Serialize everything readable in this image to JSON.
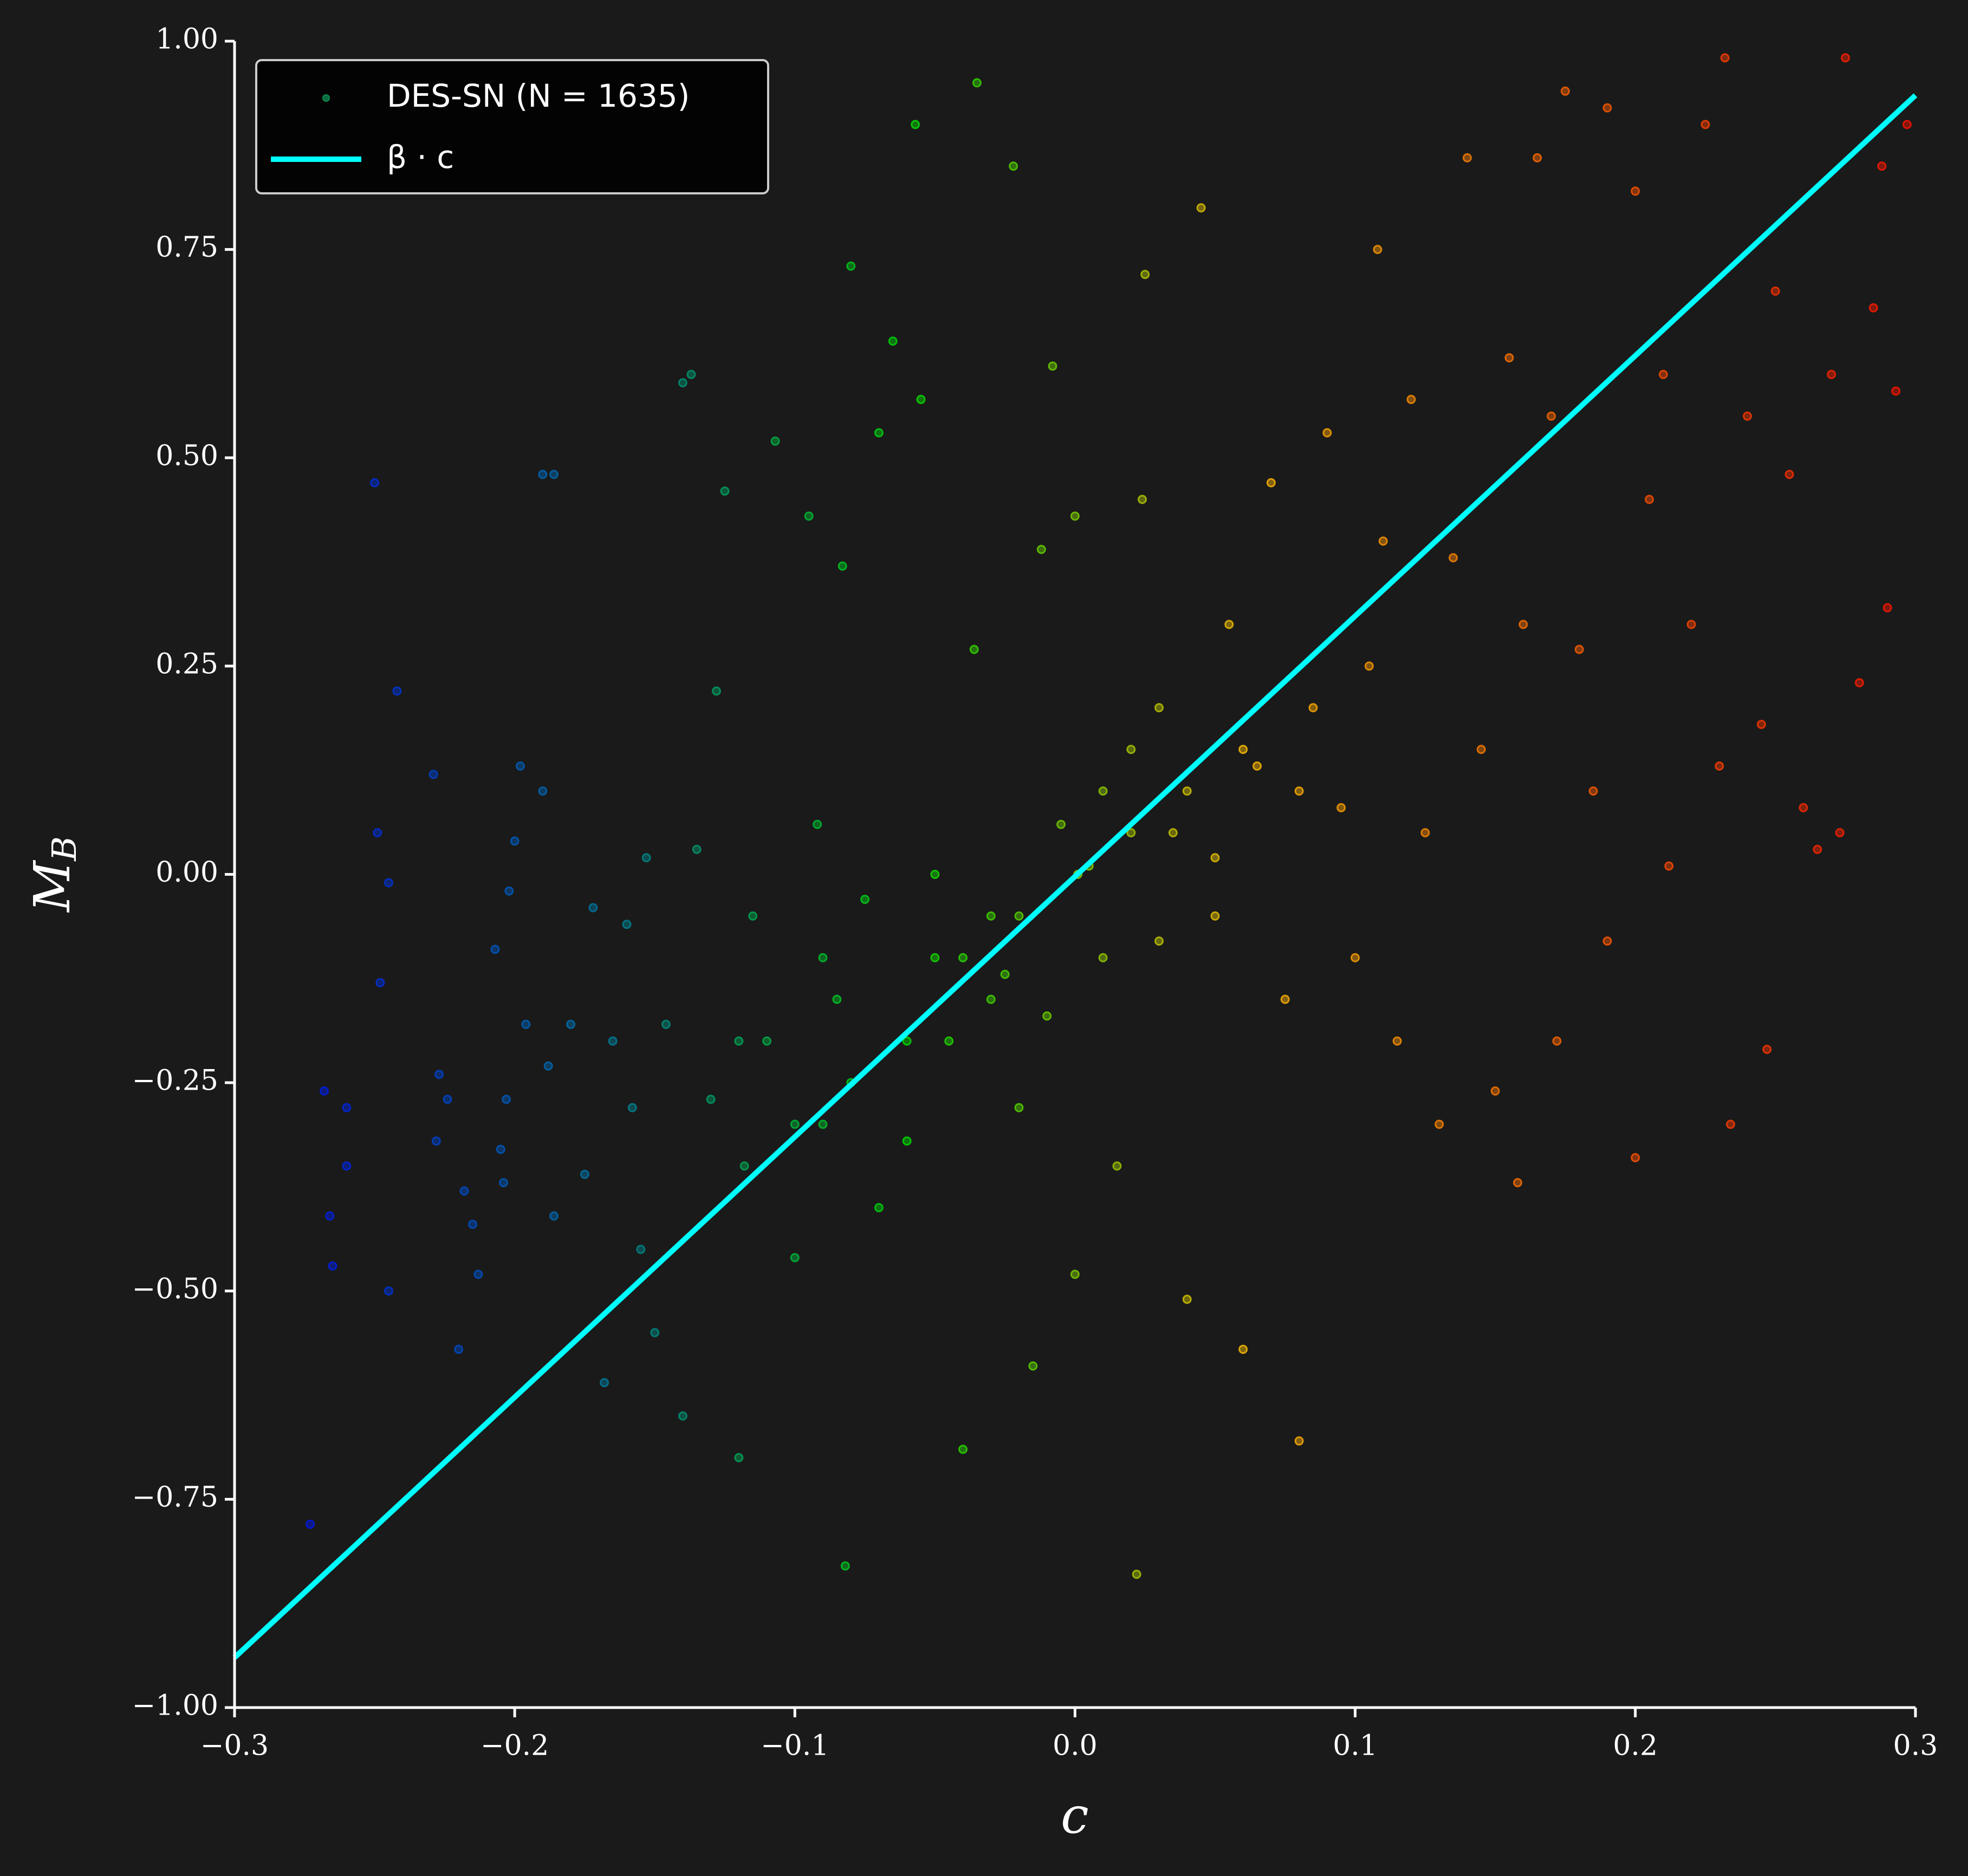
{
  "chart_data": {
    "type": "scatter",
    "xlabel": "c",
    "ylabel": "M",
    "ylabel_subscript": "B",
    "xlim": [
      -0.3,
      0.3
    ],
    "xticks": [
      {
        "value": -0.3,
        "label": "−0.3"
      },
      {
        "value": -0.2,
        "label": "−0.2"
      },
      {
        "value": -0.1,
        "label": "−0.1"
      },
      {
        "value": 0,
        "label": "0.0"
      },
      0.1,
      0.2,
      0.3
    ],
    "ylim": [
      -1,
      1
    ],
    "yticks": [
      {
        "value": -1,
        "label": "−1.00"
      },
      {
        "value": -0.75,
        "label": "−0.75"
      },
      {
        "value": -0.5,
        "label": "−0.50"
      },
      {
        "value": -0.25,
        "label": "−0.25"
      },
      {
        "value": 0,
        "label": "0.00"
      },
      0.25,
      {
        "value": 0.5,
        "label": "0.50"
      },
      0.75,
      {
        "value": 1,
        "label": "1.00"
      }
    ],
    "legend": "upper left",
    "colormap": [
      "#0000ff",
      "#0070b0",
      "#00e000",
      "#ffc000",
      "#ff6000",
      "#ff1000"
    ],
    "series": [
      {
        "name": "DES-SN (N = 1635)",
        "kind": "scatter",
        "x": [
          -0.273,
          -0.268,
          -0.266,
          -0.265,
          -0.26,
          -0.26,
          -0.25,
          -0.249,
          -0.248,
          -0.245,
          -0.245,
          -0.242,
          -0.229,
          -0.228,
          -0.227,
          -0.224,
          -0.22,
          -0.218,
          -0.215,
          -0.213,
          -0.207,
          -0.205,
          -0.204,
          -0.203,
          -0.202,
          -0.2,
          -0.198,
          -0.196,
          -0.19,
          -0.186,
          -0.19,
          -0.188,
          -0.186,
          -0.18,
          -0.175,
          -0.168,
          -0.172,
          -0.165,
          -0.16,
          -0.158,
          -0.155,
          -0.153,
          -0.15,
          -0.146,
          -0.14,
          -0.137,
          -0.135,
          -0.14,
          -0.13,
          -0.128,
          -0.125,
          -0.12,
          -0.118,
          -0.115,
          -0.11,
          -0.107,
          -0.1,
          -0.095,
          -0.092,
          -0.09,
          -0.085,
          -0.08,
          -0.082,
          -0.083,
          -0.075,
          -0.07,
          -0.065,
          -0.06,
          -0.057,
          -0.055,
          -0.05,
          -0.045,
          -0.04,
          -0.036,
          -0.035,
          -0.03,
          -0.025,
          -0.022,
          -0.02,
          -0.015,
          -0.012,
          -0.01,
          -0.008,
          -0.005,
          0,
          0,
          0.005,
          0.01,
          0.015,
          0.02,
          0.022,
          0.024,
          0.025,
          0.03,
          0.035,
          0.04,
          0.045,
          0.05,
          0.055,
          0.06,
          0.065,
          0.07,
          0.075,
          0.08,
          0.085,
          0.09,
          0.095,
          0.1,
          0.105,
          0.108,
          0.11,
          0.115,
          0.12,
          0.125,
          0.13,
          0.135,
          0.14,
          0.145,
          0.15,
          0.155,
          0.158,
          0.16,
          0.165,
          0.17,
          0.172,
          0.175,
          0.18,
          0.185,
          0.19,
          0.19,
          0.2,
          0.2,
          0.205,
          0.21,
          0.212,
          0.22,
          0.225,
          0.23,
          0.232,
          0.234,
          0.24,
          0.245,
          0.247,
          0.25,
          0.255,
          0.26,
          0.265,
          0.27,
          0.273,
          0.275,
          0.28,
          0.285,
          0.288,
          0.29,
          0.293,
          0.297,
          -0.06,
          -0.04,
          -0.02,
          0.001,
          0.02,
          -0.08,
          -0.1,
          0.04,
          0.06,
          -0.03,
          -0.05,
          0.01,
          -0.07,
          0.03,
          -0.12,
          0.08,
          -0.09,
          0.05
        ],
        "y": [
          -0.78,
          -0.26,
          -0.41,
          -0.47,
          -0.35,
          -0.28,
          0.47,
          0.05,
          -0.13,
          -0.01,
          -0.5,
          0.22,
          0.12,
          -0.32,
          -0.24,
          -0.27,
          -0.57,
          -0.38,
          -0.42,
          -0.48,
          -0.09,
          -0.33,
          -0.37,
          -0.27,
          -0.02,
          0.04,
          0.13,
          -0.18,
          0.48,
          0.48,
          0.1,
          -0.23,
          -0.41,
          -0.18,
          -0.36,
          -0.61,
          -0.04,
          -0.2,
          -0.06,
          -0.28,
          -0.45,
          0.02,
          -0.55,
          -0.18,
          0.59,
          0.6,
          0.03,
          -0.65,
          -0.27,
          0.22,
          0.46,
          -0.7,
          -0.35,
          -0.05,
          -0.2,
          0.52,
          -0.46,
          0.43,
          0.06,
          -0.3,
          -0.15,
          0.73,
          -0.83,
          0.37,
          -0.03,
          0.53,
          0.64,
          -0.32,
          0.9,
          0.57,
          -0.1,
          -0.2,
          -0.69,
          0.27,
          0.95,
          -0.05,
          -0.12,
          0.85,
          -0.28,
          -0.59,
          0.39,
          -0.17,
          0.61,
          0.06,
          -0.48,
          0.43,
          0.01,
          0.1,
          -0.35,
          0.15,
          -0.84,
          0.45,
          0.72,
          -0.08,
          0.05,
          -0.51,
          0.8,
          0.02,
          0.3,
          -0.57,
          0.13,
          0.47,
          -0.15,
          -0.68,
          0.2,
          0.53,
          0.08,
          -0.1,
          0.25,
          0.75,
          0.4,
          -0.2,
          0.57,
          0.05,
          -0.3,
          0.38,
          0.86,
          0.15,
          -0.26,
          0.62,
          -0.37,
          0.3,
          0.86,
          0.55,
          -0.2,
          0.94,
          0.27,
          0.1,
          0.92,
          -0.08,
          0.82,
          -0.34,
          0.45,
          0.6,
          0.01,
          0.3,
          0.9,
          0.13,
          0.98,
          -0.3,
          0.55,
          0.18,
          -0.21,
          0.7,
          0.48,
          0.08,
          0.03,
          0.6,
          0.05,
          0.98,
          0.23,
          0.68,
          0.85,
          0.32,
          0.58,
          0.9,
          -0.2,
          -0.1,
          -0.05,
          0.0,
          0.05,
          -0.25,
          -0.3,
          0.1,
          0.15,
          -0.15,
          0.0,
          -0.1,
          -0.4,
          0.2,
          -0.2,
          0.1,
          -0.1,
          -0.05
        ]
      },
      {
        "name": "β · c",
        "kind": "line",
        "color": "#00ffff",
        "x": [
          -0.3,
          0.3
        ],
        "y": [
          -0.94,
          0.935
        ]
      }
    ]
  }
}
